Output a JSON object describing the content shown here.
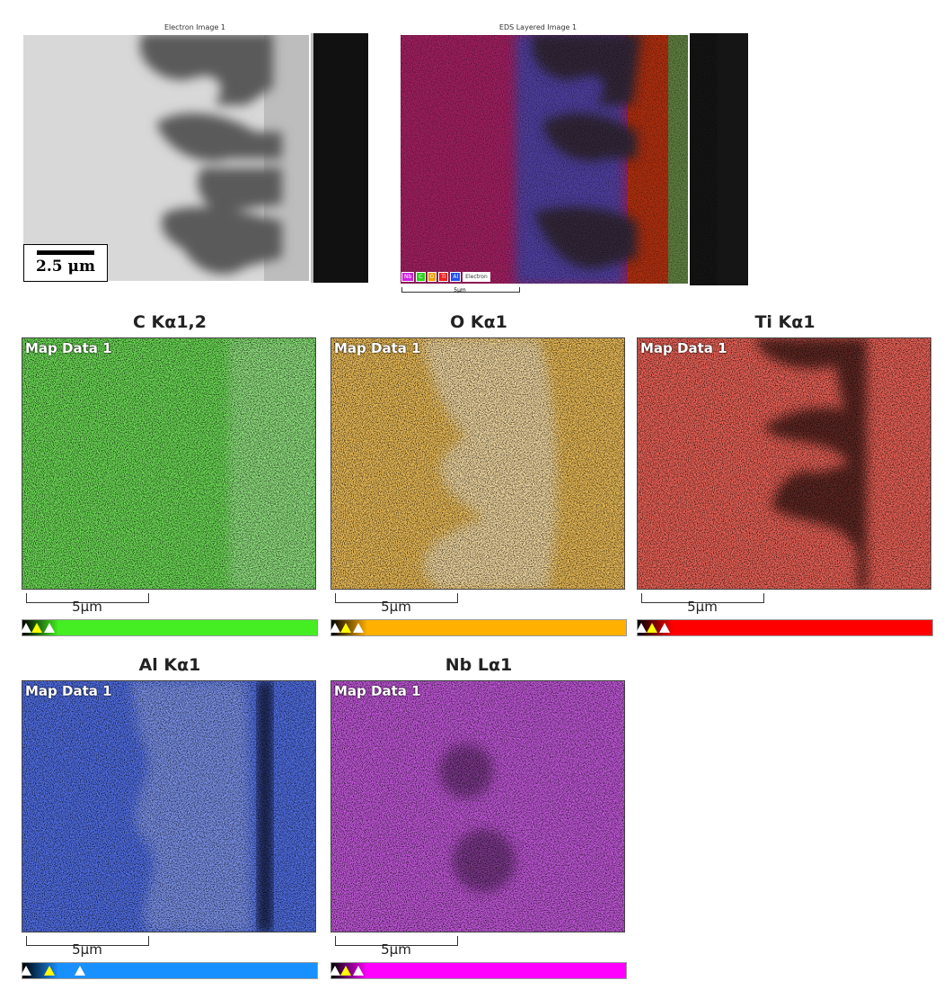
{
  "electron": {
    "title": "Electron Image 1",
    "scale_label": "2.5 μm"
  },
  "layered": {
    "title": "EDS Layered Image 1",
    "scale_label": "5μm",
    "legend": [
      {
        "label": "Nb",
        "color": "#d020e0"
      },
      {
        "label": "C",
        "color": "#30d020"
      },
      {
        "label": "O",
        "color": "#f0a000"
      },
      {
        "label": "Ti",
        "color": "#f02020"
      },
      {
        "label": "Al",
        "color": "#2050f0"
      },
      {
        "label": "Electron",
        "color": "#ffffff"
      }
    ]
  },
  "maps": [
    {
      "title": "C Kα1,2",
      "label": "Map Data 1",
      "scale_label": "5μm",
      "color": "#3cd21e",
      "bar": "#44ee22"
    },
    {
      "title": "O Kα1",
      "label": "Map Data 1",
      "scale_label": "5μm",
      "color": "#e8a820",
      "bar": "#ffb000"
    },
    {
      "title": "Ti Kα1",
      "label": "Map Data 1",
      "scale_label": "5μm",
      "color": "#e81808",
      "bar": "#ff0000"
    },
    {
      "title": "Al Kα1",
      "label": "Map Data 1",
      "scale_label": "5μm",
      "color": "#1840e0",
      "bar": "#1890ff"
    },
    {
      "title": "Nb Lα1",
      "label": "Map Data 1",
      "scale_label": "5μm",
      "color": "#b020d0",
      "bar": "#ff00ff"
    }
  ]
}
